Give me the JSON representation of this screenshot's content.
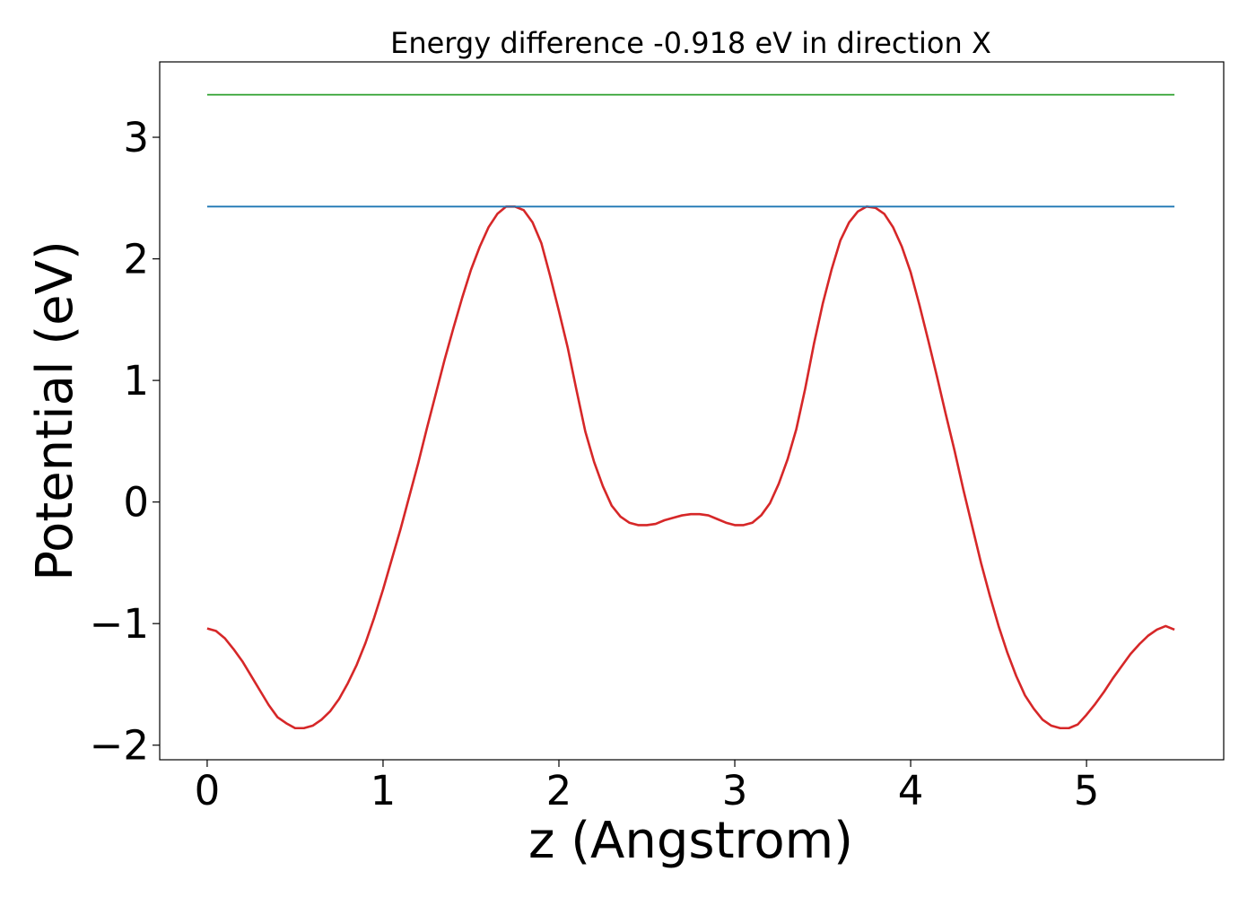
{
  "chart_data": {
    "type": "line",
    "title": "Energy difference -0.918 eV in direction X",
    "xlabel": "z (Angstrom)",
    "ylabel": "Potential (eV)",
    "xlim": [
      -0.27,
      5.78
    ],
    "ylim": [
      -2.12,
      3.62
    ],
    "grid": false,
    "xticks": [
      0,
      1,
      2,
      3,
      4,
      5
    ],
    "xtick_labels": [
      "0",
      "1",
      "2",
      "3",
      "4",
      "5"
    ],
    "yticks": [
      -2,
      -1,
      0,
      1,
      2,
      3
    ],
    "ytick_labels": [
      "−2",
      "−1",
      "0",
      "1",
      "2",
      "3"
    ],
    "series": [
      {
        "color": "#d62728",
        "x": [
          0.0,
          0.05,
          0.1,
          0.15,
          0.2,
          0.25,
          0.3,
          0.35,
          0.4,
          0.45,
          0.5,
          0.55,
          0.6,
          0.65,
          0.7,
          0.75,
          0.8,
          0.85,
          0.9,
          0.95,
          1.0,
          1.05,
          1.1,
          1.15,
          1.2,
          1.25,
          1.3,
          1.35,
          1.4,
          1.45,
          1.5,
          1.55,
          1.6,
          1.65,
          1.7,
          1.75,
          1.8,
          1.85,
          1.9,
          1.95,
          2.0,
          2.05,
          2.1,
          2.15,
          2.2,
          2.25,
          2.3,
          2.35,
          2.4,
          2.45,
          2.5,
          2.55,
          2.6,
          2.65,
          2.7,
          2.75,
          2.8,
          2.85,
          2.9,
          2.95,
          3.0,
          3.05,
          3.1,
          3.15,
          3.2,
          3.25,
          3.3,
          3.35,
          3.4,
          3.45,
          3.5,
          3.55,
          3.6,
          3.65,
          3.7,
          3.75,
          3.8,
          3.85,
          3.9,
          3.95,
          4.0,
          4.05,
          4.1,
          4.15,
          4.2,
          4.25,
          4.3,
          4.35,
          4.4,
          4.45,
          4.5,
          4.55,
          4.6,
          4.65,
          4.7,
          4.75,
          4.8,
          4.85,
          4.9,
          4.95,
          5.0,
          5.05,
          5.1,
          5.15,
          5.2,
          5.25,
          5.3,
          5.35,
          5.4,
          5.45,
          5.5
        ],
        "y": [
          -1.04,
          -1.06,
          -1.12,
          -1.21,
          -1.31,
          -1.43,
          -1.55,
          -1.67,
          -1.77,
          -1.82,
          -1.86,
          -1.86,
          -1.84,
          -1.79,
          -1.72,
          -1.62,
          -1.49,
          -1.34,
          -1.16,
          -0.95,
          -0.72,
          -0.47,
          -0.22,
          0.05,
          0.32,
          0.61,
          0.89,
          1.17,
          1.43,
          1.68,
          1.91,
          2.1,
          2.26,
          2.37,
          2.43,
          2.43,
          2.4,
          2.3,
          2.13,
          1.86,
          1.57,
          1.27,
          0.92,
          0.58,
          0.33,
          0.13,
          -0.03,
          -0.12,
          -0.17,
          -0.19,
          -0.19,
          -0.18,
          -0.15,
          -0.13,
          -0.11,
          -0.1,
          -0.1,
          -0.11,
          -0.14,
          -0.17,
          -0.19,
          -0.19,
          -0.17,
          -0.11,
          -0.01,
          0.15,
          0.35,
          0.6,
          0.93,
          1.3,
          1.63,
          1.91,
          2.15,
          2.3,
          2.39,
          2.43,
          2.42,
          2.37,
          2.26,
          2.1,
          1.89,
          1.62,
          1.33,
          1.03,
          0.72,
          0.42,
          0.1,
          -0.2,
          -0.5,
          -0.77,
          -1.02,
          -1.24,
          -1.43,
          -1.59,
          -1.7,
          -1.79,
          -1.84,
          -1.86,
          -1.86,
          -1.83,
          -1.75,
          -1.66,
          -1.56,
          -1.45,
          -1.35,
          -1.25,
          -1.17,
          -1.1,
          -1.05,
          -1.02,
          -1.05
        ]
      },
      {
        "color": "#1f77b4",
        "x": [
          0.0,
          5.5
        ],
        "y": [
          2.43,
          2.43
        ]
      },
      {
        "color": "#2ca02c",
        "x": [
          0.0,
          5.5
        ],
        "y": [
          3.35,
          3.35
        ]
      }
    ]
  }
}
